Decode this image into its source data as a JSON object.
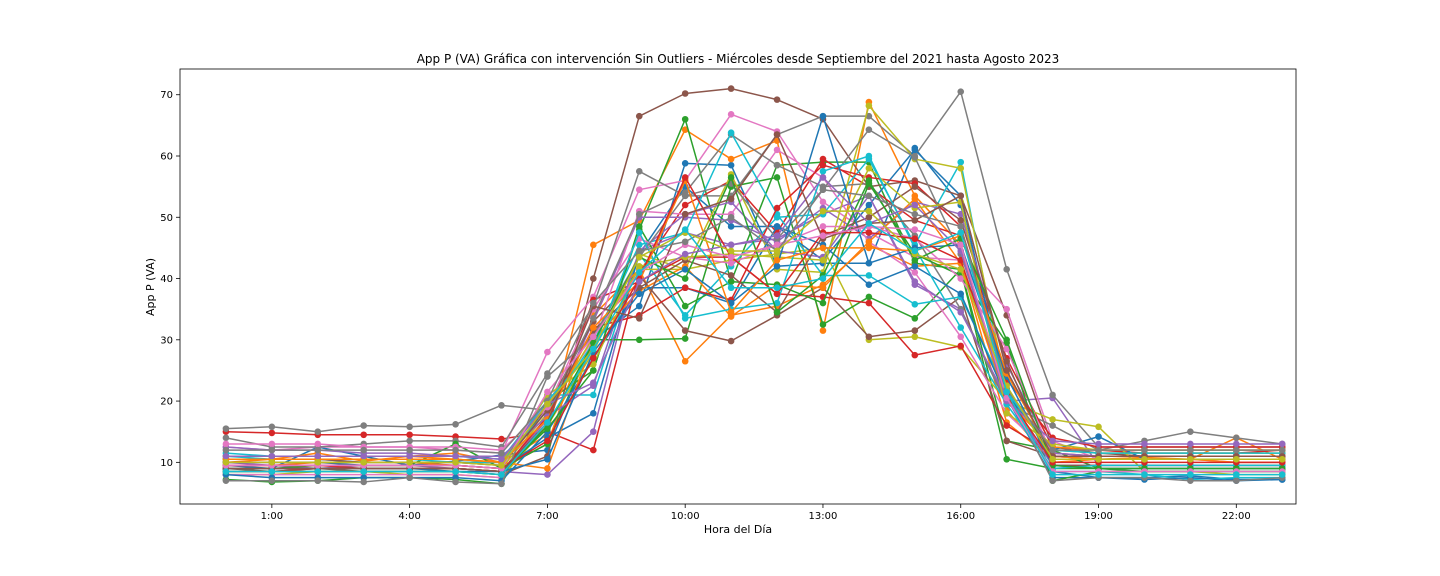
{
  "chart_data": {
    "type": "line",
    "title": "App P (VA) Gráfica con intervención Sin Outliers - Miércoles desde Septiembre del 2021 hasta Agosto 2023",
    "xlabel": "Hora del Día",
    "ylabel": "App P (VA)",
    "xlim": [
      -1,
      23.3
    ],
    "ylim": [
      3.2,
      74.2
    ],
    "grid": false,
    "legend": "none",
    "x": [
      0,
      1,
      2,
      3,
      4,
      5,
      6,
      7,
      8,
      9,
      10,
      11,
      12,
      13,
      14,
      15,
      16,
      17,
      18,
      19,
      20,
      21,
      22,
      23
    ],
    "x_ticks": [
      1,
      4,
      7,
      10,
      13,
      16,
      19,
      22
    ],
    "x_tick_labels": [
      "1:00",
      "4:00",
      "7:00",
      "10:00",
      "13:00",
      "16:00",
      "19:00",
      "22:00"
    ],
    "y_ticks": [
      10,
      20,
      30,
      40,
      50,
      60,
      70
    ],
    "y_tick_labels": [
      "10",
      "20",
      "30",
      "40",
      "50",
      "60",
      "70"
    ],
    "series": [
      {
        "color": "#1f77b4",
        "values": [
          9.5,
          9.0,
          12.5,
          11.0,
          9.5,
          10.2,
          11.2,
          12.0,
          30.0,
          35.5,
          58.8,
          58.5,
          42.0,
          42.5,
          42.5,
          61.3,
          52.0,
          22.0,
          8.5,
          7.5,
          7.5,
          7.8,
          7.2,
          7.2
        ]
      },
      {
        "color": "#ff7f0e",
        "values": [
          10.0,
          10.5,
          11.5,
          10.2,
          11.0,
          11.5,
          10.0,
          14.5,
          45.5,
          49.5,
          64.3,
          59.5,
          62.5,
          31.5,
          68.8,
          53.5,
          45.5,
          18.5,
          10.0,
          10.5,
          10.8,
          10.5,
          14.0,
          10.5
        ]
      },
      {
        "color": "#2ca02c",
        "values": [
          7.2,
          6.8,
          7.0,
          7.5,
          7.5,
          7.2,
          6.5,
          20.0,
          25.0,
          48.0,
          66.0,
          39.5,
          58.5,
          59.0,
          59.0,
          42.5,
          41.5,
          13.5,
          12.0,
          9.0,
          8.5,
          8.5,
          8.5,
          8.5
        ]
      },
      {
        "color": "#d62728",
        "values": [
          15.0,
          14.8,
          14.5,
          14.5,
          14.5,
          14.2,
          13.8,
          15.0,
          12.0,
          41.0,
          52.0,
          56.0,
          47.5,
          59.5,
          55.0,
          49.5,
          47.0,
          27.0,
          12.5,
          12.0,
          11.5,
          11.5,
          11.5,
          12.0
        ]
      },
      {
        "color": "#9467bd",
        "values": [
          10.0,
          9.5,
          9.0,
          9.5,
          9.5,
          9.0,
          8.5,
          8.0,
          15.0,
          44.5,
          47.5,
          45.5,
          46.5,
          50.5,
          53.5,
          39.0,
          35.0,
          20.0,
          20.5,
          9.5,
          9.5,
          9.5,
          9.5,
          9.5
        ]
      },
      {
        "color": "#8c564b",
        "values": [
          9.0,
          8.5,
          9.0,
          8.5,
          8.5,
          8.5,
          8.0,
          11.0,
          40.0,
          66.5,
          70.2,
          71.0,
          69.2,
          66.0,
          55.0,
          56.0,
          53.5,
          34.0,
          12.5,
          11.5,
          11.0,
          11.0,
          11.0,
          11.0
        ]
      },
      {
        "color": "#e377c2",
        "values": [
          12.5,
          12.0,
          12.5,
          12.5,
          12.5,
          12.0,
          11.5,
          28.0,
          37.0,
          54.5,
          56.0,
          66.8,
          64.0,
          52.5,
          47.5,
          43.5,
          43.0,
          35.0,
          13.5,
          10.5,
          10.5,
          10.5,
          10.0,
          10.0
        ]
      },
      {
        "color": "#7f7f7f",
        "values": [
          14.0,
          12.5,
          12.5,
          13.0,
          13.5,
          13.5,
          12.5,
          24.5,
          35.5,
          57.5,
          53.5,
          53.5,
          63.5,
          66.5,
          66.5,
          60.0,
          70.5,
          41.5,
          21.0,
          12.5,
          12.5,
          12.5,
          12.5,
          12.5
        ]
      },
      {
        "color": "#bcbd22",
        "values": [
          8.0,
          8.0,
          8.5,
          8.5,
          8.0,
          8.0,
          7.5,
          16.0,
          28.0,
          44.0,
          41.5,
          43.0,
          44.0,
          45.0,
          30.0,
          30.5,
          28.8,
          20.0,
          17.0,
          15.8,
          8.5,
          8.5,
          8.0,
          8.0
        ]
      },
      {
        "color": "#17becf",
        "values": [
          11.0,
          10.5,
          10.5,
          10.0,
          10.0,
          10.0,
          9.5,
          21.0,
          21.0,
          44.0,
          34.0,
          42.0,
          50.0,
          50.5,
          59.5,
          45.5,
          59.0,
          20.5,
          8.5,
          8.5,
          8.0,
          7.2,
          7.5,
          7.5
        ]
      },
      {
        "color": "#1f77b4",
        "values": [
          10.0,
          10.0,
          10.0,
          9.5,
          9.5,
          9.5,
          9.0,
          14.0,
          18.0,
          44.0,
          55.0,
          48.5,
          48.5,
          43.0,
          52.0,
          61.0,
          53.5,
          21.0,
          12.0,
          14.2,
          10.5,
          10.5,
          10.5,
          10.5
        ]
      },
      {
        "color": "#ff7f0e",
        "values": [
          9.5,
          9.5,
          10.0,
          10.0,
          10.0,
          9.5,
          9.0,
          13.0,
          34.0,
          41.5,
          26.5,
          34.0,
          35.5,
          39.0,
          45.5,
          42.0,
          42.5,
          16.5,
          10.5,
          10.5,
          10.5,
          10.5,
          10.0,
          10.0
        ]
      },
      {
        "color": "#2ca02c",
        "values": [
          9.0,
          9.0,
          9.5,
          9.5,
          9.5,
          13.0,
          9.0,
          13.0,
          30.0,
          30.0,
          30.2,
          55.0,
          56.5,
          32.5,
          37.0,
          33.5,
          41.5,
          10.5,
          9.0,
          9.0,
          9.0,
          9.0,
          9.0,
          9.0
        ]
      },
      {
        "color": "#d62728",
        "values": [
          8.5,
          8.5,
          9.0,
          9.0,
          9.0,
          9.0,
          8.5,
          16.0,
          36.5,
          39.5,
          43.5,
          43.5,
          37.5,
          37.0,
          36.0,
          27.5,
          29.0,
          16.0,
          11.5,
          11.0,
          11.0,
          11.0,
          11.0,
          11.0
        ]
      },
      {
        "color": "#9467bd",
        "values": [
          9.0,
          9.0,
          9.0,
          9.0,
          9.0,
          9.0,
          8.5,
          17.0,
          33.0,
          50.0,
          50.0,
          49.5,
          46.0,
          51.5,
          46.5,
          52.5,
          50.5,
          26.0,
          11.5,
          11.0,
          11.0,
          11.0,
          11.0,
          11.0
        ]
      },
      {
        "color": "#8c564b",
        "values": [
          10.5,
          10.5,
          10.5,
          10.0,
          10.0,
          10.0,
          10.0,
          19.0,
          33.0,
          40.5,
          31.5,
          29.8,
          34.0,
          38.5,
          30.5,
          31.5,
          37.0,
          13.5,
          11.0,
          10.5,
          10.5,
          10.5,
          10.5,
          10.5
        ]
      },
      {
        "color": "#e377c2",
        "values": [
          8.0,
          8.0,
          8.0,
          8.0,
          8.0,
          8.0,
          7.5,
          19.0,
          30.0,
          51.0,
          50.5,
          50.5,
          61.0,
          56.5,
          46.0,
          41.0,
          30.5,
          18.0,
          11.0,
          10.5,
          10.5,
          10.5,
          10.5,
          10.5
        ]
      },
      {
        "color": "#7f7f7f",
        "values": [
          15.5,
          15.8,
          15.0,
          16.0,
          15.8,
          16.2,
          19.3,
          18.5,
          33.5,
          50.5,
          54.0,
          63.5,
          58.5,
          55.0,
          55.5,
          47.0,
          35.0,
          19.5,
          16.0,
          12.0,
          13.5,
          15.0,
          14.0,
          13.0
        ]
      },
      {
        "color": "#bcbd22",
        "values": [
          9.5,
          9.5,
          9.5,
          9.5,
          9.5,
          9.5,
          9.0,
          18.0,
          30.5,
          41.5,
          41.5,
          57.0,
          41.5,
          41.0,
          68.2,
          59.5,
          58.0,
          22.0,
          12.0,
          11.5,
          11.5,
          11.5,
          11.5,
          11.5
        ]
      },
      {
        "color": "#17becf",
        "values": [
          10.5,
          10.5,
          10.5,
          10.5,
          10.5,
          10.0,
          10.0,
          18.5,
          29.5,
          45.5,
          47.5,
          63.8,
          50.5,
          40.5,
          40.5,
          35.8,
          37.0,
          21.5,
          12.0,
          11.5,
          11.5,
          11.5,
          11.5,
          11.5
        ]
      },
      {
        "color": "#1f77b4",
        "values": [
          8.0,
          7.5,
          7.5,
          7.5,
          7.5,
          7.5,
          7.0,
          15.0,
          27.0,
          38.5,
          38.5,
          36.0,
          48.5,
          45.5,
          39.0,
          42.0,
          37.5,
          20.5,
          7.5,
          7.5,
          7.2,
          7.5,
          7.0,
          7.2
        ]
      },
      {
        "color": "#ff7f0e",
        "values": [
          11.0,
          11.0,
          11.0,
          11.0,
          11.0,
          10.5,
          10.0,
          9.0,
          30.0,
          38.0,
          42.0,
          33.8,
          39.0,
          38.5,
          46.0,
          53.0,
          42.5,
          20.0,
          12.5,
          12.0,
          12.0,
          12.0,
          12.0,
          12.0
        ]
      },
      {
        "color": "#2ca02c",
        "values": [
          9.0,
          9.0,
          9.0,
          9.0,
          9.0,
          9.0,
          8.5,
          15.5,
          25.0,
          48.5,
          35.5,
          39.5,
          39.0,
          36.0,
          55.5,
          44.0,
          40.5,
          29.5,
          7.0,
          8.5,
          8.5,
          8.5,
          8.5,
          8.5
        ]
      },
      {
        "color": "#d62728",
        "values": [
          9.5,
          9.5,
          9.5,
          9.0,
          9.0,
          9.0,
          8.5,
          17.5,
          32.0,
          34.0,
          38.5,
          36.5,
          51.5,
          58.5,
          56.5,
          55.5,
          48.5,
          23.5,
          14.0,
          12.5,
          12.5,
          12.5,
          12.5,
          12.5
        ]
      },
      {
        "color": "#9467bd",
        "values": [
          12.5,
          12.0,
          12.0,
          11.5,
          11.5,
          11.0,
          11.0,
          17.5,
          22.5,
          44.5,
          50.5,
          52.5,
          44.5,
          43.5,
          53.5,
          39.5,
          34.5,
          20.5,
          9.5,
          9.5,
          9.5,
          9.5,
          9.5,
          9.5
        ]
      },
      {
        "color": "#8c564b",
        "values": [
          10.0,
          10.0,
          10.0,
          10.0,
          10.0,
          10.0,
          9.5,
          18.5,
          31.5,
          38.5,
          43.0,
          40.5,
          34.5,
          47.0,
          50.0,
          55.0,
          49.5,
          26.5,
          9.5,
          9.5,
          9.5,
          9.5,
          9.5,
          9.5
        ]
      },
      {
        "color": "#e377c2",
        "values": [
          13.0,
          13.0,
          13.0,
          12.5,
          12.5,
          12.5,
          12.0,
          19.0,
          35.0,
          46.5,
          43.5,
          42.5,
          45.5,
          48.5,
          48.5,
          46.5,
          40.0,
          28.5,
          11.0,
          11.0,
          11.0,
          11.0,
          11.0,
          11.0
        ]
      },
      {
        "color": "#7f7f7f",
        "values": [
          7.0,
          7.0,
          7.0,
          6.8,
          7.5,
          6.8,
          6.5,
          24.0,
          30.5,
          43.5,
          53.5,
          55.5,
          46.5,
          54.5,
          64.3,
          59.8,
          44.0,
          21.5,
          7.0,
          7.5,
          7.5,
          7.0,
          7.0,
          7.5
        ]
      },
      {
        "color": "#bcbd22",
        "values": [
          10.5,
          10.5,
          10.5,
          10.5,
          10.5,
          10.5,
          10.0,
          21.0,
          26.0,
          42.0,
          43.5,
          44.0,
          43.5,
          43.0,
          58.0,
          51.5,
          52.5,
          18.0,
          13.0,
          12.0,
          12.0,
          12.0,
          12.0,
          12.0
        ]
      },
      {
        "color": "#17becf",
        "values": [
          11.5,
          11.0,
          11.0,
          11.0,
          11.0,
          11.0,
          10.5,
          20.0,
          28.5,
          47.5,
          33.5,
          35.0,
          36.0,
          57.5,
          60.0,
          45.0,
          32.0,
          19.5,
          9.0,
          9.5,
          9.5,
          9.5,
          9.5,
          9.5
        ]
      },
      {
        "color": "#1f77b4",
        "values": [
          9.0,
          9.0,
          9.0,
          9.0,
          9.0,
          8.5,
          8.5,
          10.5,
          28.0,
          37.5,
          41.5,
          36.0,
          42.0,
          66.5,
          42.5,
          45.0,
          45.5,
          24.0,
          9.5,
          9.0,
          9.0,
          9.0,
          9.0,
          9.0
        ]
      },
      {
        "color": "#ff7f0e",
        "values": [
          10.5,
          10.5,
          10.5,
          10.5,
          10.5,
          10.5,
          10.0,
          17.0,
          32.0,
          39.5,
          56.0,
          34.5,
          43.0,
          45.0,
          45.0,
          44.5,
          47.0,
          24.5,
          11.0,
          10.5,
          10.5,
          10.5,
          10.5,
          10.5
        ]
      },
      {
        "color": "#2ca02c",
        "values": [
          8.5,
          8.5,
          8.5,
          8.5,
          8.5,
          8.5,
          8.0,
          16.0,
          29.5,
          43.5,
          40.0,
          56.5,
          34.5,
          40.5,
          56.0,
          43.0,
          46.5,
          30.0,
          9.5,
          9.0,
          9.0,
          9.0,
          9.0,
          9.0
        ]
      },
      {
        "color": "#d62728",
        "values": [
          9.5,
          9.5,
          9.5,
          9.5,
          9.5,
          9.5,
          9.0,
          13.5,
          27.0,
          40.0,
          56.5,
          43.5,
          37.5,
          47.5,
          47.5,
          46.5,
          43.0,
          21.0,
          10.0,
          10.0,
          10.0,
          10.0,
          10.0,
          10.0
        ]
      },
      {
        "color": "#9467bd",
        "values": [
          11.0,
          11.0,
          11.0,
          11.0,
          11.0,
          11.0,
          10.5,
          19.5,
          23.0,
          39.5,
          44.0,
          45.5,
          47.0,
          56.5,
          49.0,
          52.0,
          44.5,
          20.0,
          13.5,
          13.0,
          13.0,
          13.0,
          13.0,
          13.0
        ]
      },
      {
        "color": "#8c564b",
        "values": [
          9.0,
          9.0,
          9.0,
          9.0,
          9.0,
          9.0,
          8.5,
          16.5,
          35.5,
          33.5,
          50.5,
          53.0,
          63.5,
          46.5,
          49.0,
          49.5,
          53.5,
          25.0,
          11.0,
          11.0,
          11.0,
          11.0,
          11.0,
          11.0
        ]
      },
      {
        "color": "#e377c2",
        "values": [
          9.5,
          9.5,
          9.5,
          9.5,
          9.5,
          9.5,
          9.0,
          21.5,
          30.5,
          41.0,
          45.5,
          43.5,
          45.5,
          47.0,
          48.5,
          48.0,
          45.5,
          20.5,
          8.5,
          8.5,
          8.5,
          8.5,
          8.5,
          8.5
        ]
      },
      {
        "color": "#7f7f7f",
        "values": [
          12.0,
          12.0,
          12.0,
          12.0,
          12.0,
          12.0,
          11.5,
          20.0,
          36.0,
          44.5,
          46.0,
          50.0,
          44.5,
          54.5,
          53.5,
          50.5,
          48.5,
          22.0,
          12.0,
          12.0,
          12.0,
          12.0,
          12.0,
          12.0
        ]
      },
      {
        "color": "#bcbd22",
        "values": [
          10.0,
          10.0,
          10.0,
          10.0,
          10.0,
          10.0,
          9.5,
          19.5,
          28.5,
          43.5,
          47.5,
          44.5,
          44.5,
          51.0,
          51.0,
          44.0,
          41.5,
          22.5,
          10.5,
          10.5,
          10.5,
          10.5,
          10.5,
          10.5
        ]
      },
      {
        "color": "#17becf",
        "values": [
          8.5,
          8.5,
          8.5,
          8.5,
          8.5,
          8.5,
          8.0,
          16.5,
          28.5,
          41.0,
          48.0,
          38.5,
          38.5,
          40.0,
          49.0,
          44.5,
          47.5,
          21.5,
          8.0,
          8.0,
          8.0,
          8.0,
          8.0,
          8.0
        ]
      }
    ]
  }
}
